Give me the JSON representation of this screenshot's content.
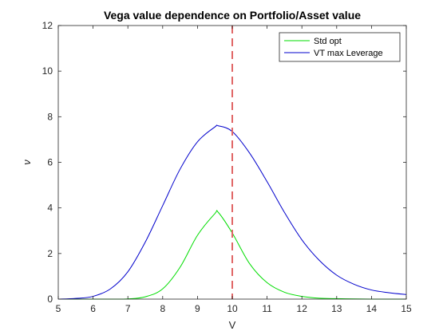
{
  "chart_data": {
    "type": "line",
    "title": "Vega value dependence on Portfolio/Asset value",
    "xlabel": "V",
    "ylabel": "ν",
    "xlim": [
      5,
      15
    ],
    "ylim": [
      0,
      12
    ],
    "xticks": [
      5,
      6,
      7,
      8,
      9,
      10,
      11,
      12,
      13,
      14,
      15
    ],
    "yticks": [
      0,
      2,
      4,
      6,
      8,
      10,
      12
    ],
    "grid": false,
    "legend_position": "top-right",
    "vline": {
      "x": 10,
      "color": "#e06666",
      "style": "dashed"
    },
    "x": [
      5,
      5.5,
      6,
      6.5,
      7,
      7.5,
      8,
      8.5,
      9,
      9.5,
      9.6,
      10,
      10.5,
      11,
      11.5,
      12,
      12.5,
      13,
      13.5,
      14,
      14.5,
      15
    ],
    "series": [
      {
        "name": "Std opt",
        "color": "#00dd00",
        "values": [
          0,
          0,
          0,
          0,
          0.01,
          0.1,
          0.45,
          1.4,
          2.8,
          3.75,
          3.8,
          2.9,
          1.55,
          0.72,
          0.3,
          0.12,
          0.04,
          0.02,
          0.01,
          0.0,
          0.0,
          0.0
        ]
      },
      {
        "name": "VT max Leverage",
        "color": "#0000cc",
        "values": [
          0,
          0.03,
          0.12,
          0.45,
          1.2,
          2.5,
          4.1,
          5.7,
          6.9,
          7.55,
          7.6,
          7.35,
          6.4,
          5.15,
          3.8,
          2.6,
          1.7,
          1.05,
          0.65,
          0.4,
          0.28,
          0.2
        ]
      }
    ]
  }
}
